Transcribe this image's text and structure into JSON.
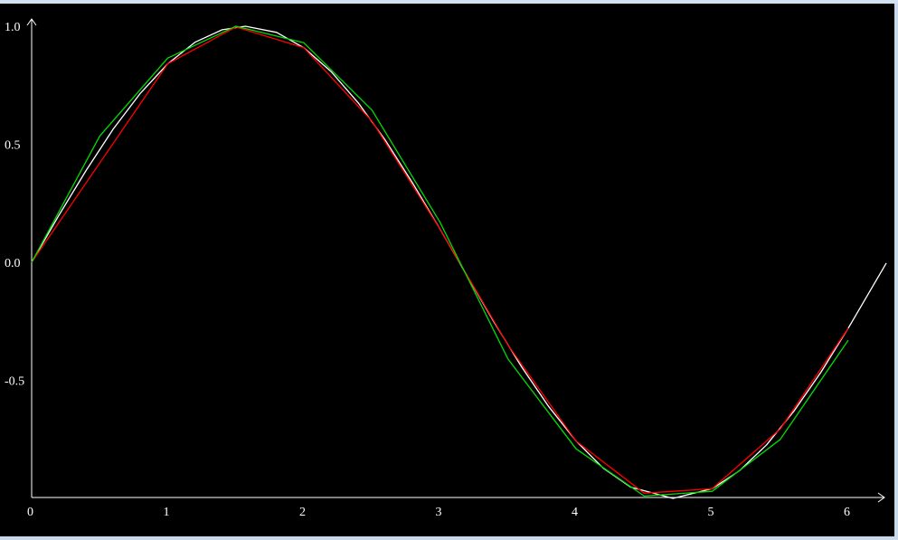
{
  "chart_data": {
    "type": "line",
    "title": "",
    "xlabel": "",
    "ylabel": "",
    "xlim": [
      0,
      6.28
    ],
    "ylim": [
      -1.0,
      1.0
    ],
    "x_ticks": [
      "0",
      "1",
      "2",
      "3",
      "4",
      "5",
      "6"
    ],
    "x_tick_values": [
      0,
      1,
      2,
      3,
      4,
      5,
      6
    ],
    "y_ticks": [
      "1.0",
      "0.5",
      "0.0",
      "-0.5"
    ],
    "y_tick_values": [
      1.0,
      0.5,
      0.0,
      -0.5
    ],
    "grid": false,
    "legend": "none",
    "series": [
      {
        "color": "#ffffff",
        "x": [
          0,
          0.2,
          0.4,
          0.6,
          0.8,
          1.0,
          1.2,
          1.4,
          1.5708,
          1.8,
          2.0,
          2.2,
          2.4,
          2.6,
          2.8,
          3.0,
          3.2,
          3.4,
          3.6,
          3.8,
          4.0,
          4.2,
          4.4,
          4.7124,
          5.0,
          5.2,
          5.4,
          5.6,
          5.8,
          6.0,
          6.28
        ],
        "y": [
          0.0,
          0.199,
          0.389,
          0.565,
          0.717,
          0.841,
          0.932,
          0.985,
          1.0,
          0.974,
          0.909,
          0.808,
          0.675,
          0.516,
          0.335,
          0.141,
          -0.058,
          -0.256,
          -0.443,
          -0.612,
          -0.757,
          -0.872,
          -0.952,
          -1.0,
          -0.959,
          -0.883,
          -0.773,
          -0.631,
          -0.465,
          -0.279,
          -0.003
        ]
      },
      {
        "color": "#ff0000",
        "x": [
          0,
          1.0,
          1.5,
          2.0,
          2.5,
          3.0,
          3.5,
          4.0,
          4.5,
          5.0,
          5.5,
          6.0
        ],
        "y": [
          0.0,
          0.841,
          0.997,
          0.909,
          0.598,
          0.141,
          -0.351,
          -0.757,
          -0.978,
          -0.959,
          -0.706,
          -0.279
        ]
      },
      {
        "color": "#00dd00",
        "x": [
          0,
          0.5,
          1.0,
          1.5,
          2.0,
          2.5,
          3.0,
          3.5,
          4.0,
          4.5,
          5.0,
          5.5,
          6.0
        ],
        "y": [
          0.0,
          0.535,
          0.865,
          1.0,
          0.93,
          0.645,
          0.17,
          -0.41,
          -0.79,
          -0.99,
          -0.97,
          -0.75,
          -0.33
        ]
      }
    ]
  }
}
